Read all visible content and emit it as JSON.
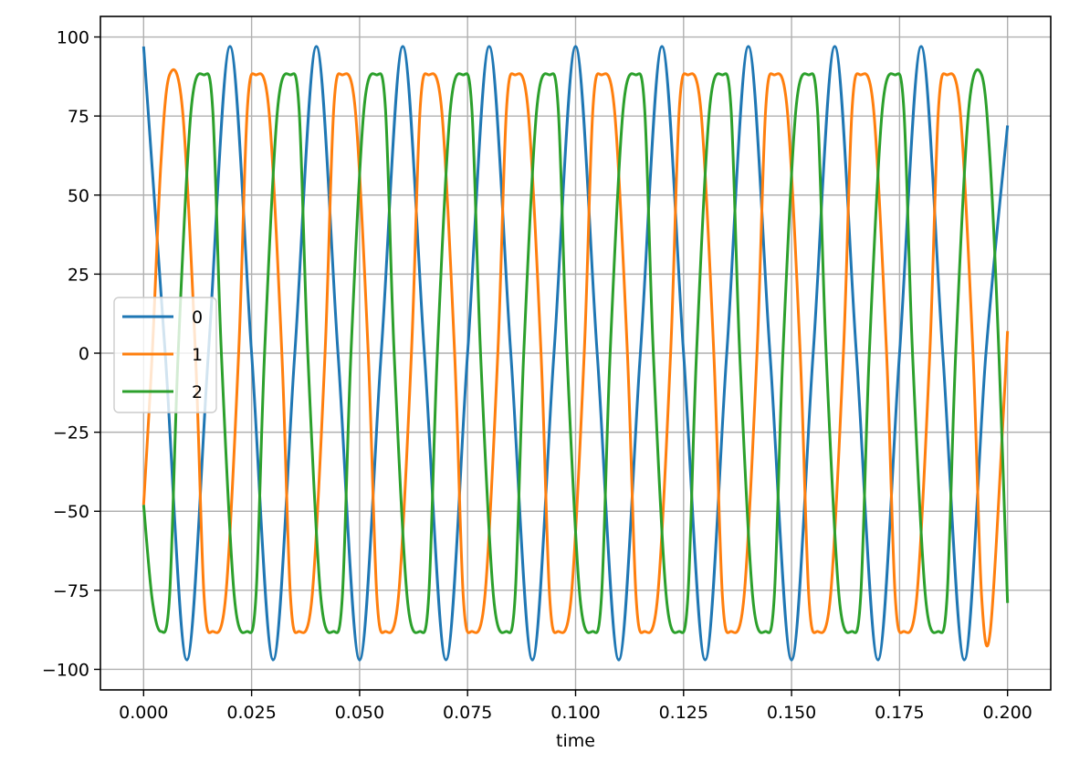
{
  "chart_data": {
    "type": "line",
    "title": "",
    "xlabel": "time",
    "ylabel": "",
    "xlim": [
      -0.01,
      0.21
    ],
    "ylim": [
      -106.5,
      106.5
    ],
    "xticks": [
      0.0,
      0.025,
      0.05,
      0.075,
      0.1,
      0.125,
      0.15,
      0.175,
      0.2
    ],
    "xtick_labels": [
      "0.000",
      "0.025",
      "0.050",
      "0.075",
      "0.100",
      "0.125",
      "0.150",
      "0.175",
      "0.200"
    ],
    "yticks": [
      100,
      75,
      50,
      25,
      0,
      -25,
      -50,
      -75,
      -100
    ],
    "ytick_labels": [
      "100",
      "75",
      "50",
      "25",
      "0",
      "−25",
      "−50",
      "−75",
      "−100"
    ],
    "grid": true,
    "legend_position": "center-left",
    "series": [
      {
        "name": "0",
        "color": "#1f77b4",
        "x": [
          0.0,
          0.005,
          0.01,
          0.015,
          0.02,
          0.025,
          0.03,
          0.035,
          0.04,
          0.045,
          0.05,
          0.055,
          0.06,
          0.065,
          0.07,
          0.075,
          0.08,
          0.085,
          0.09,
          0.095,
          0.1,
          0.105,
          0.11,
          0.115,
          0.12,
          0.125,
          0.13,
          0.135,
          0.14,
          0.145,
          0.15,
          0.155,
          0.16,
          0.165,
          0.17,
          0.175,
          0.18,
          0.185,
          0.19,
          0.195,
          0.2
        ],
        "y": [
          97,
          0,
          -97,
          0,
          97,
          0,
          -97,
          0,
          97,
          0,
          -97,
          0,
          97,
          0,
          -97,
          0,
          97,
          0,
          -97,
          0,
          97,
          0,
          -97,
          0,
          97,
          0,
          -97,
          0,
          97,
          0,
          -97,
          0,
          97,
          0,
          -97,
          0,
          97,
          0,
          -97,
          0,
          72
        ]
      },
      {
        "name": "1",
        "color": "#ff7f0e",
        "x": [
          0.0,
          0.002,
          0.004,
          0.006,
          0.009,
          0.012,
          0.014,
          0.016,
          0.019,
          0.022,
          0.024,
          0.026,
          0.029,
          0.032,
          0.034,
          0.036,
          0.039,
          0.042,
          0.044,
          0.046,
          0.049,
          0.052,
          0.054,
          0.056,
          0.059,
          0.062,
          0.064,
          0.066,
          0.069,
          0.072,
          0.074,
          0.076,
          0.079,
          0.082,
          0.084,
          0.086,
          0.089,
          0.092,
          0.094,
          0.096,
          0.099,
          0.102,
          0.104,
          0.106,
          0.109,
          0.112,
          0.114,
          0.116,
          0.119,
          0.122,
          0.124,
          0.126,
          0.129,
          0.132,
          0.134,
          0.136,
          0.139,
          0.142,
          0.144,
          0.146,
          0.149,
          0.152,
          0.154,
          0.156,
          0.159,
          0.162,
          0.164,
          0.166,
          0.169,
          0.172,
          0.174,
          0.176,
          0.179,
          0.182,
          0.184,
          0.186,
          0.189,
          0.192,
          0.194,
          0.196,
          0.199,
          0.2
        ],
        "y": [
          -48,
          0,
          60,
          88,
          77,
          0,
          -77,
          -88,
          -77,
          0,
          77,
          88,
          77,
          0,
          -77,
          -88,
          -77,
          0,
          77,
          88,
          77,
          0,
          -77,
          -88,
          -77,
          0,
          77,
          88,
          77,
          0,
          -77,
          -88,
          -77,
          0,
          77,
          88,
          77,
          0,
          -77,
          -88,
          -77,
          0,
          77,
          88,
          77,
          0,
          -77,
          -88,
          -77,
          0,
          77,
          88,
          77,
          0,
          -77,
          -88,
          -77,
          0,
          77,
          88,
          77,
          0,
          -77,
          -88,
          -77,
          0,
          77,
          88,
          77,
          0,
          -77,
          -88,
          -77,
          0,
          77,
          88,
          77,
          0,
          -77,
          -88,
          -20,
          7
        ]
      },
      {
        "name": "2",
        "color": "#2ca02c",
        "x": [
          0.0,
          0.002,
          0.004,
          0.006,
          0.008,
          0.011,
          0.014,
          0.016,
          0.018,
          0.021,
          0.024,
          0.026,
          0.028,
          0.031,
          0.034,
          0.036,
          0.038,
          0.041,
          0.044,
          0.046,
          0.048,
          0.051,
          0.054,
          0.056,
          0.058,
          0.061,
          0.064,
          0.066,
          0.068,
          0.071,
          0.074,
          0.076,
          0.078,
          0.081,
          0.084,
          0.086,
          0.088,
          0.091,
          0.094,
          0.096,
          0.098,
          0.101,
          0.104,
          0.106,
          0.108,
          0.111,
          0.114,
          0.116,
          0.118,
          0.121,
          0.124,
          0.126,
          0.128,
          0.131,
          0.134,
          0.136,
          0.138,
          0.141,
          0.144,
          0.146,
          0.148,
          0.151,
          0.154,
          0.156,
          0.158,
          0.161,
          0.164,
          0.166,
          0.168,
          0.171,
          0.174,
          0.176,
          0.178,
          0.181,
          0.184,
          0.186,
          0.188,
          0.191,
          0.194,
          0.196,
          0.198,
          0.2
        ],
        "y": [
          -48,
          -78,
          -88,
          -77,
          0,
          77,
          88,
          77,
          0,
          -77,
          -88,
          -77,
          0,
          77,
          88,
          77,
          0,
          -77,
          -88,
          -77,
          0,
          77,
          88,
          77,
          0,
          -77,
          -88,
          -77,
          0,
          77,
          88,
          77,
          0,
          -77,
          -88,
          -77,
          0,
          77,
          88,
          77,
          0,
          -77,
          -88,
          -77,
          0,
          77,
          88,
          77,
          0,
          -77,
          -88,
          -77,
          0,
          77,
          88,
          77,
          0,
          -77,
          -88,
          -77,
          0,
          77,
          88,
          77,
          0,
          -77,
          -88,
          -77,
          0,
          77,
          88,
          77,
          0,
          -77,
          -88,
          -77,
          0,
          77,
          88,
          60,
          0,
          -79
        ]
      }
    ]
  }
}
